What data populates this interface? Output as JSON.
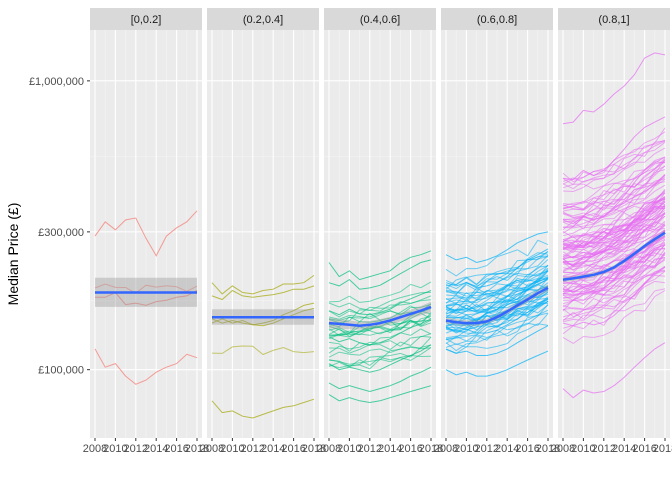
{
  "chart_data": {
    "type": "line",
    "ylabel": "Median Price (£)",
    "xlabel": "",
    "y_scale": "log",
    "ylim": [
      58000,
      1500000
    ],
    "xlim": [
      2008,
      2018
    ],
    "y_ticks": [
      {
        "value": 100000,
        "label": "£100,000"
      },
      {
        "value": 300000,
        "label": "£300,000"
      },
      {
        "value": 1000000,
        "label": "£1,000,000"
      }
    ],
    "x_ticks": [
      {
        "value": 2008,
        "label": "2008"
      },
      {
        "value": 2010,
        "label": "2010"
      },
      {
        "value": 2012,
        "label": "2012"
      },
      {
        "value": 2014,
        "label": "2014"
      },
      {
        "value": 2016,
        "label": "2016"
      },
      {
        "value": 2018,
        "label": "2018"
      }
    ],
    "grid": true,
    "legend": "none",
    "years": [
      2008,
      2009,
      2010,
      2011,
      2012,
      2013,
      2014,
      2015,
      2016,
      2017,
      2018
    ],
    "panels": [
      {
        "label": "[0,0.2]",
        "color": "#F8766D",
        "n_series": 4,
        "series_start_range": [
          100000,
          350000
        ],
        "series": [
          {
            "values": [
              290000,
              325000,
              305000,
              330000,
              335000,
              285000,
              248000,
              290000,
              310000,
              325000,
              355000
            ]
          },
          {
            "values": [
              178000,
              178000,
              185000,
              168000,
              170000,
              167000,
              172000,
              174000,
              178000,
              180000,
              188000
            ]
          },
          {
            "values": [
              118000,
              102000,
              105000,
              95000,
              89000,
              92000,
              98000,
              102000,
              105000,
              113000,
              110000
            ]
          }
        ],
        "smooth": [
          185000,
          185000,
          185000,
          185000,
          185000,
          185000,
          185000,
          185000,
          185000,
          185000,
          185000
        ],
        "ci_low": [
          165000,
          165000,
          165000,
          165000,
          165000,
          165000,
          165000,
          165000,
          165000,
          165000,
          165000
        ],
        "ci_high": [
          208000,
          208000,
          208000,
          208000,
          208000,
          208000,
          208000,
          208000,
          208000,
          208000,
          208000
        ]
      },
      {
        "label": "(0.2,0.4]",
        "color": "#A3A500",
        "n_series": 6,
        "series_start_range": [
          80000,
          210000
        ],
        "series": [
          {
            "values": [
              200000,
              183000,
              195000,
              185000,
              183000,
              188000,
              190000,
              198000,
              198000,
              200000,
              212000
            ]
          },
          {
            "values": [
              180000,
              175000,
              188000,
              180000,
              178000,
              180000,
              182000,
              185000,
              190000,
              190000,
              195000
            ]
          },
          {
            "values": [
              150000,
              145000,
              148000,
              145000,
              143000,
              145000,
              148000,
              155000,
              160000,
              167000,
              170000
            ]
          },
          {
            "values": [
              145000,
              150000,
              145000,
              148000,
              143000,
              142000,
              145000,
              150000,
              155000,
              160000,
              163000
            ]
          },
          {
            "values": [
              78000,
              71000,
              72000,
              69000,
              68000,
              70000,
              72000,
              74000,
              75000,
              77000,
              79000
            ]
          }
        ],
        "smooth": [
          152000,
          152000,
          152000,
          152000,
          152000,
          152000,
          152000,
          152000,
          152000,
          152000,
          152000
        ],
        "ci_low": [
          143000,
          143000,
          143000,
          143000,
          143000,
          143000,
          143000,
          143000,
          143000,
          143000,
          143000
        ],
        "ci_high": [
          162000,
          162000,
          162000,
          162000,
          162000,
          162000,
          162000,
          162000,
          162000,
          162000,
          162000
        ]
      },
      {
        "label": "(0.4,0.6]",
        "color": "#00BF7D",
        "n_series": 30,
        "series_start_range": [
          80000,
          215000
        ],
        "series": [
          {
            "values": [
              235000,
              210000,
              220000,
              205000,
              210000,
              215000,
              220000,
              235000,
              245000,
              250000,
              258000
            ]
          },
          {
            "values": [
              200000,
              195000,
              205000,
              190000,
              192000,
              196000,
              205000,
              215000,
              225000,
              235000,
              240000
            ]
          },
          {
            "values": [
              160000,
              155000,
              162000,
              156000,
              155000,
              158000,
              162000,
              170000,
              176000,
              182000,
              188000
            ]
          },
          {
            "values": [
              130000,
              125000,
              128000,
              124000,
              122000,
              124000,
              128000,
              134000,
              140000,
              144000,
              150000
            ]
          },
          {
            "values": [
              105000,
              100000,
              102000,
              100000,
              98000,
              100000,
              104000,
              108000,
              112000,
              116000,
              122000
            ]
          },
          {
            "values": [
              90000,
              86000,
              88000,
              86000,
              84000,
              86000,
              88000,
              91000,
              95000,
              98000,
              102000
            ]
          },
          {
            "values": [
              82000,
              78000,
              80000,
              78000,
              77000,
              78000,
              80000,
              82000,
              84000,
              86000,
              88000
            ]
          }
        ],
        "smooth": [
          145000,
          144000,
          143000,
          142000,
          143000,
          145000,
          148000,
          152000,
          156000,
          160000,
          165000
        ],
        "ci_low": [
          139000,
          138500,
          138000,
          137500,
          138500,
          140500,
          143500,
          147000,
          150500,
          154000,
          158000
        ],
        "ci_high": [
          151000,
          149500,
          148000,
          146500,
          147500,
          149500,
          152500,
          157000,
          161500,
          166000,
          172000
        ]
      },
      {
        "label": "(0.6,0.8]",
        "color": "#00B0F6",
        "n_series": 55,
        "series_start_range": [
          95000,
          260000
        ],
        "series": [
          {
            "values": [
              250000,
              240000,
              245000,
              235000,
              240000,
              248000,
              260000,
              275000,
              285000,
              295000,
              300000
            ]
          },
          {
            "values": [
              200000,
              195000,
              200000,
              192000,
              195000,
              200000,
              210000,
              225000,
              240000,
              250000,
              262000
            ]
          },
          {
            "values": [
              165000,
              160000,
              163000,
              158000,
              158000,
              162000,
              170000,
              180000,
              190000,
              198000,
              205000
            ]
          },
          {
            "values": [
              140000,
              136000,
              138000,
              134000,
              134000,
              137000,
              143000,
              150000,
              158000,
              165000,
              172000
            ]
          },
          {
            "values": [
              118000,
              114000,
              116000,
              112000,
              112000,
              114000,
              118000,
              124000,
              130000,
              136000,
              142000
            ]
          },
          {
            "values": [
              100000,
              96000,
              98000,
              95000,
              95000,
              97000,
              100000,
              104000,
              108000,
              112000,
              116000
            ]
          }
        ],
        "smooth": [
          148000,
          146000,
          145000,
          145000,
          147000,
          152000,
          159000,
          167000,
          175000,
          184000,
          192000
        ],
        "ci_low": [
          144000,
          142500,
          141500,
          141500,
          143500,
          148500,
          155500,
          163000,
          170500,
          179000,
          186500
        ],
        "ci_high": [
          152000,
          149500,
          148500,
          148500,
          150500,
          155500,
          162500,
          171000,
          179500,
          189000,
          197500
        ]
      },
      {
        "label": "(0.8,1]",
        "color": "#E76BF3",
        "n_series": 110,
        "series_start_range": [
          85000,
          720000
        ],
        "series": [
          {
            "values": [
              710000,
              720000,
              790000,
              780000,
              830000,
              900000,
              960000,
              1050000,
              1200000,
              1250000,
              1230000
            ]
          },
          {
            "values": [
              460000,
              455000,
              490000,
              470000,
              490000,
              530000,
              580000,
              640000,
              690000,
              720000,
              750000
            ]
          },
          {
            "values": [
              330000,
              320000,
              340000,
              330000,
              340000,
              365000,
              400000,
              445000,
              490000,
              520000,
              545000
            ]
          },
          {
            "values": [
              250000,
              245000,
              255000,
              250000,
              255000,
              272000,
              298000,
              330000,
              365000,
              388000,
              410000
            ]
          },
          {
            "values": [
              190000,
              186000,
              192000,
              188000,
              192000,
              204000,
              222000,
              245000,
              270000,
              290000,
              305000
            ]
          },
          {
            "values": [
              145000,
              142000,
              146000,
              143000,
              146000,
              154000,
              166000,
              182000,
              200000,
              215000,
              228000
            ]
          },
          {
            "values": [
              86000,
              80000,
              85000,
              83000,
              84000,
              88000,
              94000,
              102000,
              110000,
              118000,
              124000
            ]
          }
        ],
        "smooth": [
          205000,
          207000,
          210000,
          213000,
          218000,
          226000,
          238000,
          252000,
          268000,
          283000,
          298000
        ],
        "ci_low": [
          201000,
          203000,
          206000,
          209000,
          214000,
          222000,
          233500,
          247500,
          263000,
          277500,
          292000
        ],
        "ci_high": [
          209000,
          211000,
          214000,
          217000,
          222000,
          230000,
          242500,
          256500,
          273000,
          288500,
          304000
        ]
      }
    ]
  }
}
